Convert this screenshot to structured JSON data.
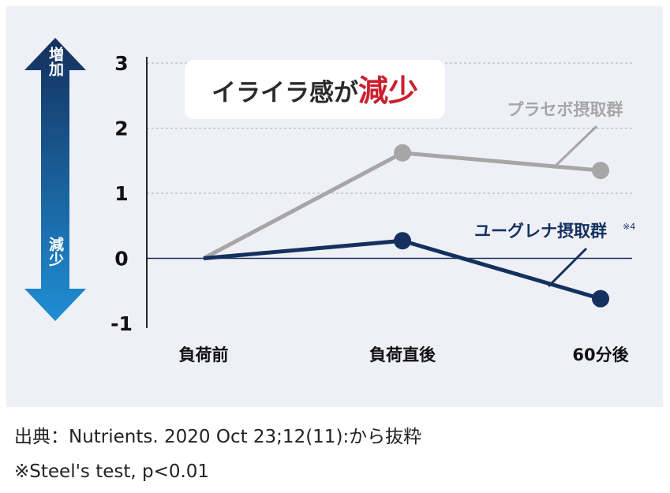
{
  "chart_data": {
    "type": "line",
    "title": "イライラ感が",
    "title_emphasis": "減少",
    "categories": [
      "負荷前",
      "負荷直後",
      "60分後"
    ],
    "y_ticks": [
      "3",
      "2",
      "1",
      "0",
      "-1"
    ],
    "ylim": [
      -1,
      3
    ],
    "grid": true,
    "axis_arrow": {
      "up_label": "増加",
      "down_label": "減少"
    },
    "series": [
      {
        "name": "プラセボ摂取群",
        "values": [
          0,
          1.62,
          1.35
        ],
        "color": "#a6a6a6"
      },
      {
        "name": "ユーグレナ摂取群",
        "name_mark": "※4",
        "values": [
          0,
          0.27,
          -0.62
        ],
        "color": "#14305e"
      }
    ],
    "colors": {
      "background": "#eef0f6",
      "emphasis": "#cc1f2d",
      "arrow_top": "#14305e",
      "arrow_bottom": "#1f8ed4"
    }
  },
  "footer": {
    "source": "出典：Nutrients. 2020 Oct 23;12(11):から抜粋",
    "note": "※Steel's test, p<0.01"
  }
}
